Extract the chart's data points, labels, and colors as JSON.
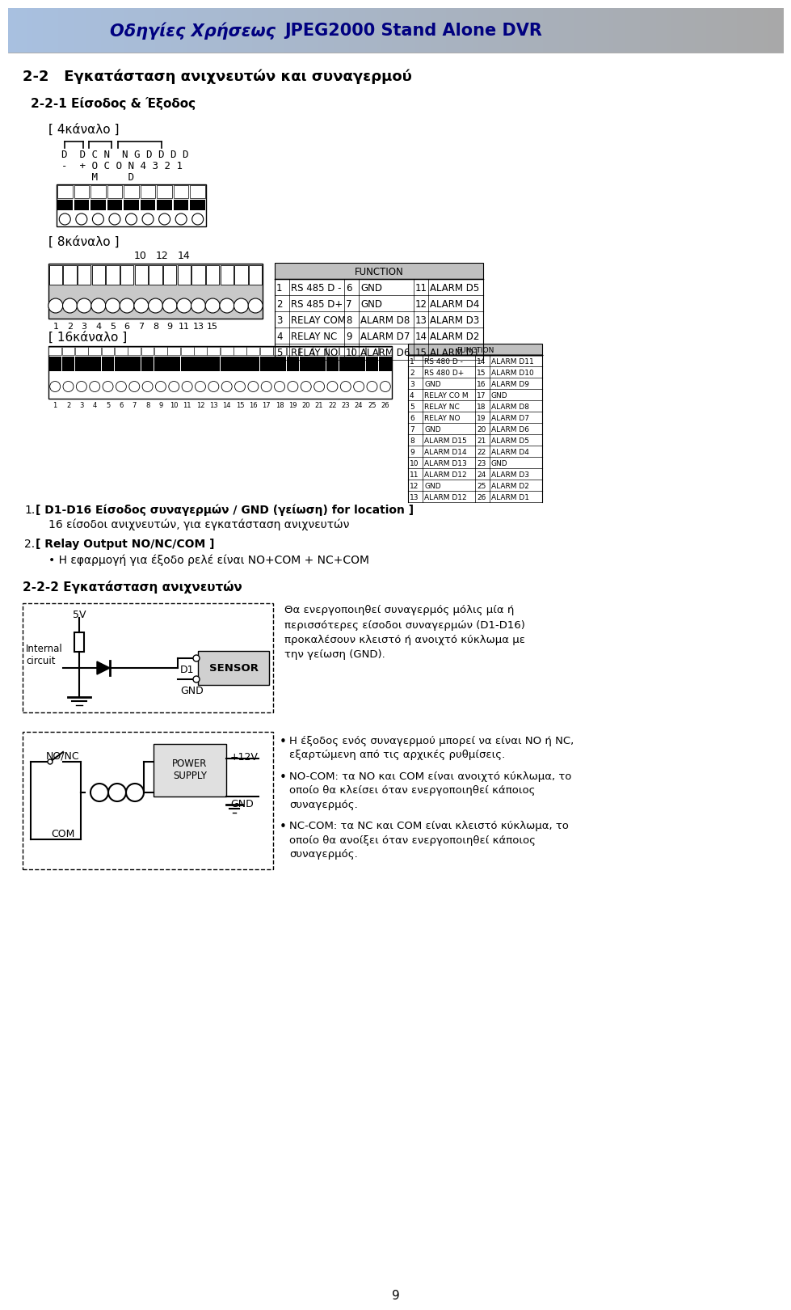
{
  "title_italic": "Οδηγίες Χρήσεως ",
  "title_bold": "JPEG2000 Stand Alone DVR",
  "header_bg_left": "#a8c0e0",
  "header_bg_right": "#a8a8a8",
  "section_22": "2-2   Εγκατάσταση ανιχνευτών και συναγερμού",
  "section_221": "2-2-1 Είσοδος & Έξοδος",
  "label_4ch": "[ 4κάναλο ]",
  "connector_row1": "D  D C N  N G D D D D",
  "connector_row2": "-  + O C O N 4 3 2 1",
  "connector_row3": "     M     D",
  "label_8ch": "[ 8κάναλο ]",
  "label_16ch": "[ 16κάναλο ]",
  "func8_header": "FUNCTION",
  "func8_rows": [
    [
      "1",
      "RS 485 D -",
      "6",
      "GND",
      "11",
      "ALARM D5"
    ],
    [
      "2",
      "RS 485 D+",
      "7",
      "GND",
      "12",
      "ALARM D4"
    ],
    [
      "3",
      "RELAY COM",
      "8",
      "ALARM D8",
      "13",
      "ALARM D3"
    ],
    [
      "4",
      "RELAY NC",
      "9",
      "ALARM D7",
      "14",
      "ALARM D2"
    ],
    [
      "5",
      "RELAY NO",
      "10",
      "ALARM D6",
      "15",
      "ALARM D1"
    ]
  ],
  "func16_header": "FUNCTION",
  "func16_rows": [
    [
      "1",
      "RS 480 D -",
      "14",
      "ALARM D11"
    ],
    [
      "2",
      "RS 480 D+",
      "15",
      "ALARM D10"
    ],
    [
      "3",
      "GND",
      "16",
      "ALARM D9"
    ],
    [
      "4",
      "RELAY CO M",
      "17",
      "GND"
    ],
    [
      "5",
      "RELAY NC",
      "18",
      "ALARM D8"
    ],
    [
      "6",
      "RELAY NO",
      "19",
      "ALARM D7"
    ],
    [
      "7",
      "GND",
      "20",
      "ALARM D6"
    ],
    [
      "8",
      "ALARM D15",
      "21",
      "ALARM D5"
    ],
    [
      "9",
      "ALARM D14",
      "22",
      "ALARM D4"
    ],
    [
      "10",
      "ALARM D13",
      "23",
      "GND"
    ],
    [
      "11",
      "ALARM D12",
      "24",
      "ALARM D3"
    ],
    [
      "12",
      "GND",
      "25",
      "ALARM D2"
    ],
    [
      "13",
      "ALARM D12",
      "26",
      "ALARM D1"
    ]
  ],
  "note1_num": "1.",
  "note1_bold": "[ D1-D16 Είσοδος συναγερμών / GND (γείωση) for location ]",
  "note1_sub": "16 είσοδοι ανιχνευτών, για εγκατάσταση ανιχνευτών",
  "note2_num": "2.",
  "note2_bold": "[ Relay Output NO/NC/COM ]",
  "note2_bullet": "Η εφαρμογή για έξοδο ρελέ είναι NO+COM + NC+COM",
  "section_222": "2-2-2 Εγκατάσταση ανιχνευτών",
  "sensor_box_label": "SENSOR",
  "sensor_5v": "5V",
  "sensor_d1": "D1",
  "sensor_gnd": "GND",
  "internal_circuit": "Internal\ncircuit",
  "sensor_desc": "Θα ενεργοποιηθεί συναγερμός μόλις μία ή\nπερισσότερες είσοδοι συναγερμών (D1-D16)\nπροκαλέσουν κλειστό ή ανοιχτό κύκλωμα με\nτην γείωση (GND).",
  "power_label": "POWER\nSUPPLY",
  "plus12v": "+12V",
  "gnd2": "GND",
  "nonc_lbl": "NO/NC",
  "com_lbl": "COM",
  "bullet1": "Η έξοδος ενός συναγερμού μπορεί να είναι NO ή NC, εξαρτώμενη από τις αρχικές ρυθμίσεις.",
  "bullet2": "NO-COM: τα NO και COM είναι ανοιχτό κύκλωμα, το οποίο θα κλείσει όταν ενεργοποιηθεί κάποιος συναγερμός.",
  "bullet3": "NC-COM: τα NC και COM είναι κλειστό κύκλωμα, το οποίο θα ανοίξει όταν ενεργοποιηθεί κάποιος συναγερμός.",
  "page_num": "9",
  "navy": "#000080",
  "black": "#000000",
  "white": "#ffffff",
  "gray_light": "#d0d0d0",
  "gray_header": "#c0c0c0",
  "gray_block": "#c8c8c8"
}
